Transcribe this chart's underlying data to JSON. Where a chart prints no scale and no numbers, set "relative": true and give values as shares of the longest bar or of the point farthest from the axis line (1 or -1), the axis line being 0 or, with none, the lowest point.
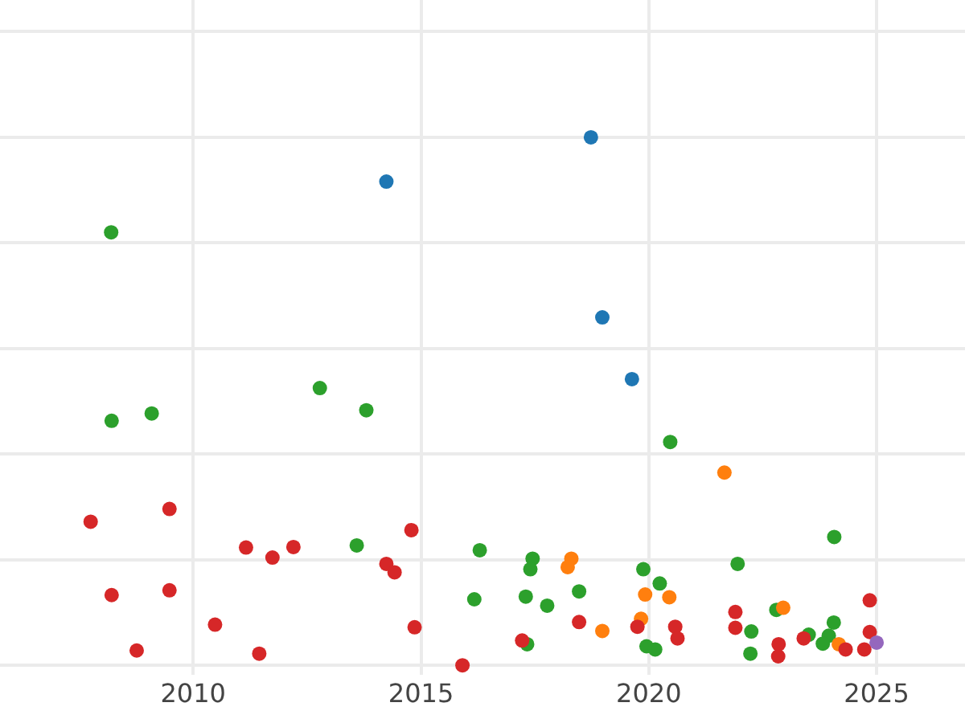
{
  "chart_data": {
    "type": "scatter",
    "relative": true,
    "grid": true,
    "marker": "circle",
    "xlim": [
      2005.76,
      2026.94
    ],
    "xticks": [
      2010,
      2015,
      2020,
      2025
    ],
    "tick_labels": "x",
    "series": [
      {
        "color": "#1f77b4",
        "x": [
          2014.24,
          2018.73,
          2018.98,
          2019.63
        ],
        "values": [
          0.916,
          1,
          0.659,
          0.542
        ]
      },
      {
        "color": "#2ca02c",
        "x": [
          2008.2,
          2008.21,
          2009.09,
          2012.78,
          2013.8,
          2013.59,
          2016.29,
          2016.17,
          2017.45,
          2017.4,
          2017.3,
          2017.33,
          2017.77,
          2018.47,
          2019.88,
          2019.95,
          2020.14,
          2020.24,
          2020.47,
          2021.95,
          2022.25,
          2022.23,
          2022.8,
          2024.07,
          2024.06,
          2023.51,
          2023.95,
          2023.82
        ],
        "values": [
          0.82,
          0.463,
          0.477,
          0.525,
          0.483,
          0.227,
          0.218,
          0.125,
          0.202,
          0.182,
          0.13,
          0.04,
          0.113,
          0.14,
          0.182,
          0.036,
          0.03,
          0.155,
          0.423,
          0.192,
          0.064,
          0.022,
          0.105,
          0.243,
          0.081,
          0.058,
          0.056,
          0.041
        ]
      },
      {
        "color": "#ff7f0e",
        "x": [
          2021.66,
          2019.92,
          2020.45,
          2019.83,
          2022.95,
          2024.17,
          2018.3,
          2018.22,
          2018.98
        ],
        "values": [
          0.365,
          0.134,
          0.129,
          0.088,
          0.109,
          0.04,
          0.202,
          0.186,
          0.065
        ]
      },
      {
        "color": "#d62728",
        "x": [
          2007.75,
          2009.48,
          2011.16,
          2011.74,
          2012.2,
          2008.21,
          2009.48,
          2008.76,
          2010.48,
          2011.45,
          2014.24,
          2014.42,
          2014.79,
          2014.86,
          2015.91,
          2017.22,
          2018.47,
          2019.75,
          2020.58,
          2020.63,
          2021.9,
          2021.9,
          2022.85,
          2022.84,
          2023.4,
          2024.85,
          2024.85,
          2024.32,
          2024.73
        ],
        "values": [
          0.272,
          0.296,
          0.223,
          0.204,
          0.224,
          0.133,
          0.142,
          0.028,
          0.077,
          0.022,
          0.192,
          0.176,
          0.256,
          0.072,
          0,
          0.047,
          0.082,
          0.073,
          0.073,
          0.051,
          0.101,
          0.071,
          0.04,
          0.017,
          0.051,
          0.123,
          0.063,
          0.03,
          0.03
        ]
      },
      {
        "color": "#9467bd",
        "x": [
          2025.0
        ],
        "values": [
          0.043
        ]
      }
    ]
  }
}
